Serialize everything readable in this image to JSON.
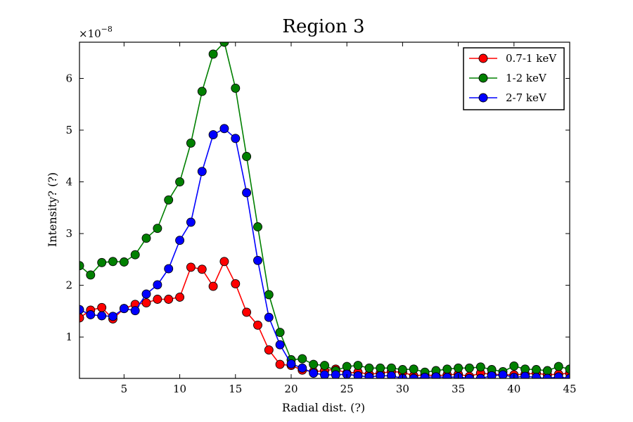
{
  "chart_data": {
    "type": "line",
    "title": "Region 3",
    "xlabel": "Radial dist. (?)",
    "ylabel": "Intensity? (?)",
    "y_offset_label": "×10",
    "y_offset_exponent": "−8",
    "xlim": [
      1,
      45
    ],
    "ylim": [
      0.2,
      6.7
    ],
    "xticks": [
      5,
      10,
      15,
      20,
      25,
      30,
      35,
      40,
      45
    ],
    "yticks": [
      1,
      2,
      3,
      4,
      5,
      6
    ],
    "legend_position": "top-right",
    "x": [
      1,
      2,
      3,
      4,
      5,
      6,
      7,
      8,
      9,
      10,
      11,
      12,
      13,
      14,
      15,
      16,
      17,
      18,
      19,
      20,
      21,
      22,
      23,
      24,
      25,
      26,
      27,
      28,
      29,
      30,
      31,
      32,
      33,
      34,
      35,
      36,
      37,
      38,
      39,
      40,
      41,
      42,
      43,
      44,
      45
    ],
    "series": [
      {
        "name": "0.7-1 keV",
        "color": "#ff0000",
        "values": [
          1.37,
          1.52,
          1.57,
          1.35,
          1.55,
          1.63,
          1.66,
          1.73,
          1.73,
          1.77,
          2.35,
          2.31,
          1.98,
          2.46,
          2.03,
          1.48,
          1.23,
          0.75,
          0.47,
          0.45,
          0.36,
          0.33,
          0.35,
          0.38,
          0.3,
          0.32,
          0.28,
          0.3,
          0.33,
          0.32,
          0.25,
          0.27,
          0.25,
          0.27,
          0.28,
          0.24,
          0.3,
          0.28,
          0.27,
          0.27,
          0.28,
          0.3,
          0.27,
          0.28,
          0.3
        ]
      },
      {
        "name": "1-2 keV",
        "color": "#008000",
        "values": [
          2.38,
          2.2,
          2.44,
          2.46,
          2.45,
          2.59,
          2.91,
          3.1,
          3.65,
          4.0,
          4.75,
          5.75,
          6.47,
          6.7,
          5.81,
          4.49,
          3.13,
          1.82,
          1.09,
          0.56,
          0.58,
          0.47,
          0.45,
          0.35,
          0.43,
          0.45,
          0.4,
          0.4,
          0.4,
          0.37,
          0.38,
          0.32,
          0.35,
          0.38,
          0.4,
          0.4,
          0.42,
          0.37,
          0.33,
          0.44,
          0.38,
          0.37,
          0.35,
          0.43,
          0.38
        ]
      },
      {
        "name": "2-7 keV",
        "color": "#0000ff",
        "values": [
          1.53,
          1.43,
          1.41,
          1.4,
          1.55,
          1.51,
          1.83,
          2.01,
          2.32,
          2.87,
          3.22,
          4.2,
          4.91,
          5.03,
          4.84,
          3.79,
          2.48,
          1.38,
          0.85,
          0.48,
          0.4,
          0.3,
          0.27,
          0.27,
          0.28,
          0.25,
          0.23,
          0.25,
          0.25,
          0.2,
          0.2,
          0.22,
          0.23,
          0.22,
          0.23,
          0.2,
          0.2,
          0.25,
          0.27,
          0.22,
          0.24,
          0.22,
          0.2,
          0.23,
          0.2
        ]
      }
    ]
  }
}
